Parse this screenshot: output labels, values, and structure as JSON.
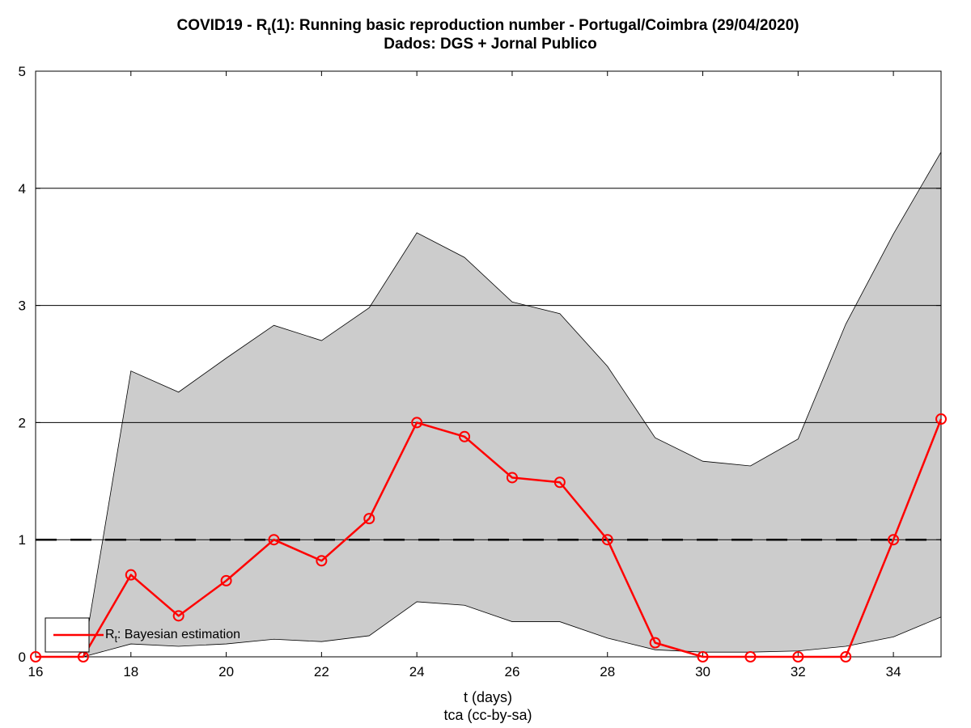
{
  "chart_data": {
    "type": "line",
    "title_line1_prefix": "COVID19 - R",
    "title_line1_sub": "t",
    "title_line1_suffix": "(1): Running basic reproduction number - Portugal/Coimbra (29/04/2020)",
    "title_line2": "Dados: DGS + Jornal Publico",
    "xlabel": "t (days)",
    "credit": "tca (cc-by-sa)",
    "xlim": [
      16,
      35
    ],
    "ylim": [
      0,
      5
    ],
    "xticks": [
      "16",
      "18",
      "20",
      "22",
      "24",
      "26",
      "28",
      "30",
      "32",
      "34"
    ],
    "yticks": [
      "0",
      "1",
      "2",
      "3",
      "4",
      "5"
    ],
    "grid": "horizontal",
    "reference_line_y": 1,
    "legend_position": "bottom-left",
    "colors": {
      "series": "#ff0000",
      "band_fill": "#cccccc",
      "band_edge": "#000000",
      "reference": "#000000"
    },
    "x": [
      16,
      17,
      18,
      19,
      20,
      21,
      22,
      23,
      24,
      25,
      26,
      27,
      28,
      29,
      30,
      31,
      32,
      33,
      34,
      35
    ],
    "series": [
      {
        "label_prefix": "R",
        "label_sub": "t",
        "label_suffix": ": Bayesian estimation",
        "values": [
          0,
          0,
          0.7,
          0.35,
          0.65,
          1.0,
          0.82,
          1.18,
          2.0,
          1.88,
          1.53,
          1.49,
          1.0,
          0.12,
          0,
          0,
          0,
          0,
          1.0,
          2.03
        ]
      }
    ],
    "band": {
      "upper": [
        0,
        0,
        2.44,
        2.26,
        2.55,
        2.83,
        2.7,
        2.98,
        3.62,
        3.41,
        3.03,
        2.93,
        2.48,
        1.87,
        1.67,
        1.63,
        1.86,
        2.84,
        3.61,
        4.31
      ],
      "lower": [
        0,
        0,
        0.11,
        0.09,
        0.11,
        0.15,
        0.13,
        0.18,
        0.47,
        0.44,
        0.3,
        0.3,
        0.16,
        0.06,
        0.04,
        0.04,
        0.05,
        0.09,
        0.17,
        0.34
      ]
    }
  }
}
